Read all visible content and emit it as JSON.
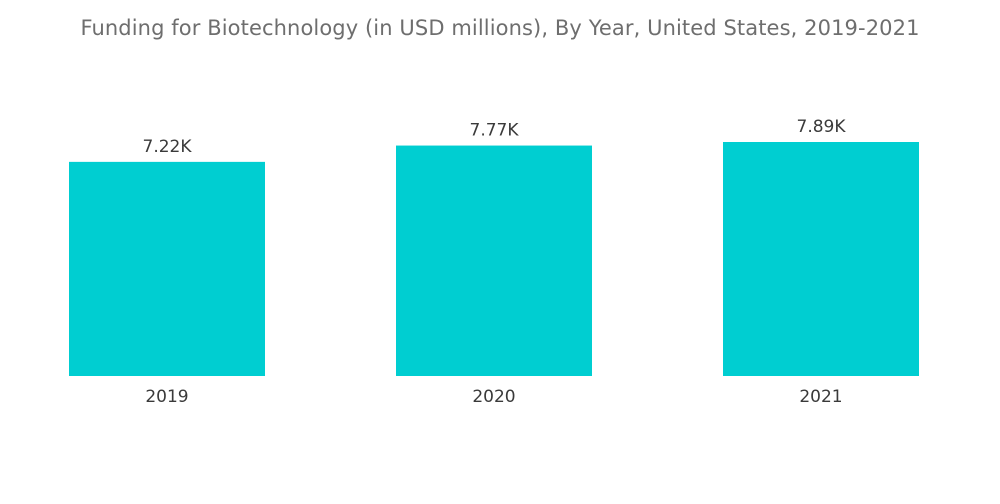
{
  "chart_data": {
    "type": "bar",
    "title": "Funding for Biotechnology (in USD millions), By Year, United States, 2019-2021",
    "categories": [
      "2019",
      "2020",
      "2021"
    ],
    "values": [
      7220,
      7770,
      7890
    ],
    "data_labels": [
      "7.22K",
      "7.77K",
      "7.89K"
    ],
    "xlabel": "",
    "ylabel": "",
    "ylim": [
      0,
      7890
    ],
    "grid": false,
    "legend": "none",
    "bar_color": "#00ced1"
  }
}
